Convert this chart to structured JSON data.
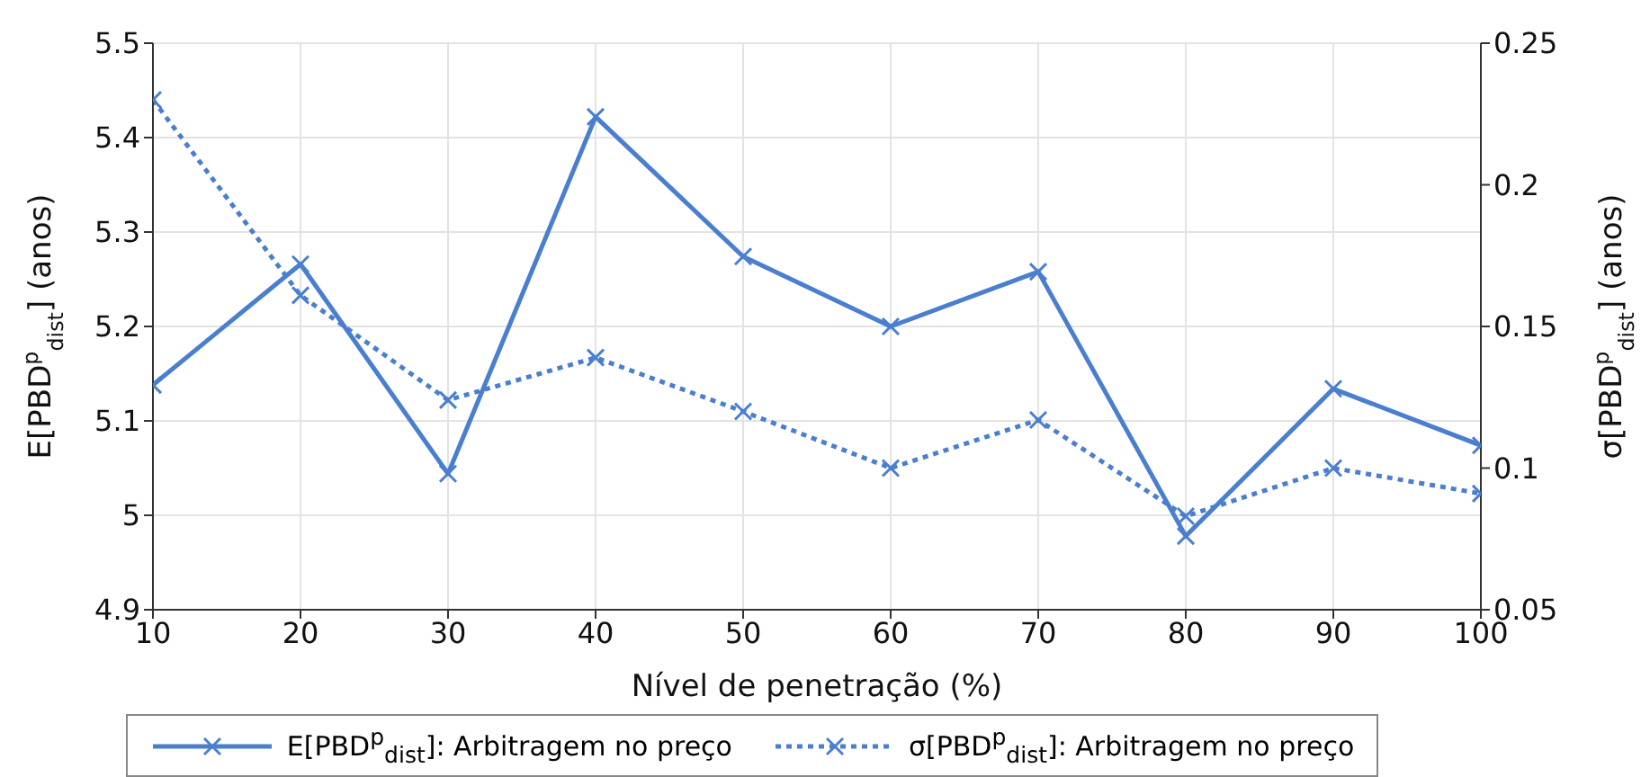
{
  "chart_data": {
    "type": "line",
    "xlabel": "Nível de penetração (%)",
    "ylabel": "E[PBD$^{p}$$_{dist}$] (anos)",
    "y2label": "σ[PBD$^{p}$$_{dist}$] (anos)",
    "x": [
      10,
      20,
      30,
      40,
      50,
      60,
      70,
      80,
      90,
      100
    ],
    "series": [
      {
        "name": "E[PBD$^{p}$$_{dist}$]: Arbitragem no preço",
        "color": "#4a7fcf",
        "line_style": "solid",
        "values": [
          5.138,
          5.266,
          5.044,
          5.422,
          5.274,
          5.2,
          5.258,
          4.978,
          5.134,
          5.074
        ]
      },
      {
        "name": "σ[PBD$^{p}$$_{dist}$]: Arbitragem no preço",
        "color": "#4a7fcf",
        "line_style": "dotted",
        "axis": "y2",
        "values": [
          0.23,
          0.161,
          0.124,
          0.139,
          0.12,
          0.1,
          0.117,
          0.083,
          0.1,
          0.091
        ]
      }
    ],
    "xlim": [
      10,
      100
    ],
    "xticks": [
      10,
      20,
      30,
      40,
      50,
      60,
      70,
      80,
      90,
      100
    ],
    "ylim": [
      4.9,
      5.5
    ],
    "yticks": [
      4.9,
      5,
      5.1,
      5.2,
      5.3,
      5.4,
      5.5
    ],
    "y2lim": [
      0.05,
      0.25
    ],
    "y2ticks": [
      0.05,
      0.1,
      0.15,
      0.2,
      0.25
    ],
    "grid": true,
    "legend": "bottom",
    "marker": "cross"
  }
}
